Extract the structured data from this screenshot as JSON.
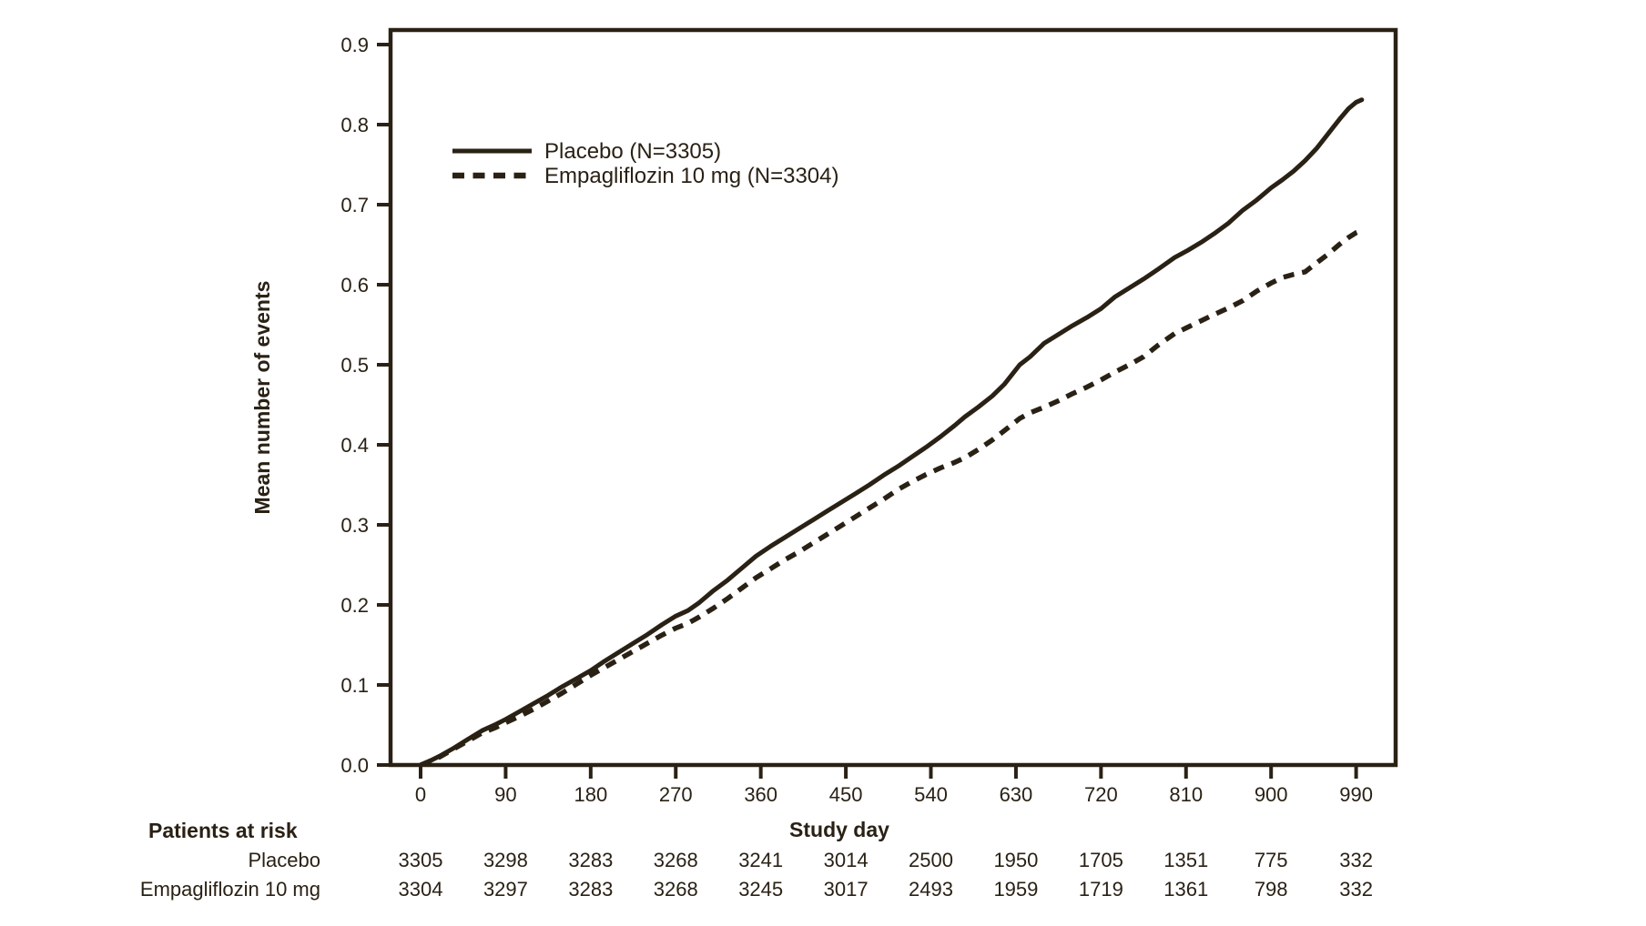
{
  "colors": {
    "ink": "#2a2115",
    "background": "#ffffff"
  },
  "chart_data": {
    "type": "line",
    "title": "",
    "xlabel": "Study day",
    "ylabel": "Mean number of events",
    "xlim": [
      0,
      990
    ],
    "ylim": [
      0.0,
      0.9
    ],
    "x_ticks": [
      0,
      90,
      180,
      270,
      360,
      450,
      540,
      630,
      720,
      810,
      900,
      990
    ],
    "y_ticks": [
      "0.0",
      "0.1",
      "0.2",
      "0.3",
      "0.4",
      "0.5",
      "0.6",
      "0.7",
      "0.8",
      "0.9"
    ],
    "grid": "off",
    "legend_position": "upper-left-inside",
    "series": [
      {
        "name": "Placebo (N=3305)",
        "style": "solid",
        "points": [
          [
            0,
            0
          ],
          [
            8,
            0.004
          ],
          [
            20,
            0.011
          ],
          [
            35,
            0.021
          ],
          [
            50,
            0.032
          ],
          [
            65,
            0.043
          ],
          [
            80,
            0.051
          ],
          [
            90,
            0.057
          ],
          [
            105,
            0.067
          ],
          [
            120,
            0.077
          ],
          [
            135,
            0.087
          ],
          [
            150,
            0.098
          ],
          [
            165,
            0.108
          ],
          [
            180,
            0.118
          ],
          [
            195,
            0.13
          ],
          [
            210,
            0.141
          ],
          [
            225,
            0.152
          ],
          [
            240,
            0.163
          ],
          [
            255,
            0.175
          ],
          [
            270,
            0.186
          ],
          [
            283,
            0.193
          ],
          [
            295,
            0.203
          ],
          [
            310,
            0.218
          ],
          [
            325,
            0.231
          ],
          [
            340,
            0.246
          ],
          [
            355,
            0.261
          ],
          [
            370,
            0.273
          ],
          [
            385,
            0.284
          ],
          [
            400,
            0.295
          ],
          [
            415,
            0.306
          ],
          [
            430,
            0.317
          ],
          [
            445,
            0.328
          ],
          [
            460,
            0.339
          ],
          [
            475,
            0.35
          ],
          [
            490,
            0.362
          ],
          [
            505,
            0.373
          ],
          [
            520,
            0.385
          ],
          [
            535,
            0.397
          ],
          [
            550,
            0.41
          ],
          [
            565,
            0.424
          ],
          [
            576,
            0.435
          ],
          [
            590,
            0.447
          ],
          [
            605,
            0.461
          ],
          [
            618,
            0.476
          ],
          [
            634,
            0.5
          ],
          [
            645,
            0.51
          ],
          [
            660,
            0.527
          ],
          [
            675,
            0.538
          ],
          [
            690,
            0.549
          ],
          [
            705,
            0.559
          ],
          [
            720,
            0.57
          ],
          [
            735,
            0.585
          ],
          [
            750,
            0.596
          ],
          [
            765,
            0.607
          ],
          [
            780,
            0.619
          ],
          [
            798,
            0.634
          ],
          [
            812,
            0.643
          ],
          [
            826,
            0.653
          ],
          [
            840,
            0.664
          ],
          [
            855,
            0.677
          ],
          [
            870,
            0.693
          ],
          [
            885,
            0.706
          ],
          [
            900,
            0.721
          ],
          [
            912,
            0.731
          ],
          [
            924,
            0.742
          ],
          [
            936,
            0.755
          ],
          [
            948,
            0.77
          ],
          [
            958,
            0.785
          ],
          [
            966,
            0.797
          ],
          [
            974,
            0.809
          ],
          [
            982,
            0.82
          ],
          [
            990,
            0.828
          ],
          [
            996,
            0.831
          ]
        ]
      },
      {
        "name": "Empagliflozin 10 mg (N=3304)",
        "style": "dashed",
        "points": [
          [
            0,
            0
          ],
          [
            8,
            0.004
          ],
          [
            20,
            0.01
          ],
          [
            35,
            0.02
          ],
          [
            50,
            0.03
          ],
          [
            65,
            0.04
          ],
          [
            80,
            0.047
          ],
          [
            90,
            0.053
          ],
          [
            105,
            0.061
          ],
          [
            120,
            0.07
          ],
          [
            135,
            0.08
          ],
          [
            150,
            0.09
          ],
          [
            165,
            0.101
          ],
          [
            180,
            0.112
          ],
          [
            195,
            0.122
          ],
          [
            210,
            0.132
          ],
          [
            225,
            0.142
          ],
          [
            240,
            0.152
          ],
          [
            255,
            0.162
          ],
          [
            270,
            0.171
          ],
          [
            283,
            0.177
          ],
          [
            295,
            0.185
          ],
          [
            310,
            0.196
          ],
          [
            325,
            0.208
          ],
          [
            340,
            0.221
          ],
          [
            355,
            0.234
          ],
          [
            370,
            0.245
          ],
          [
            385,
            0.256
          ],
          [
            400,
            0.266
          ],
          [
            415,
            0.277
          ],
          [
            430,
            0.288
          ],
          [
            445,
            0.299
          ],
          [
            460,
            0.31
          ],
          [
            475,
            0.321
          ],
          [
            490,
            0.332
          ],
          [
            505,
            0.344
          ],
          [
            520,
            0.354
          ],
          [
            535,
            0.363
          ],
          [
            550,
            0.371
          ],
          [
            565,
            0.378
          ],
          [
            576,
            0.384
          ],
          [
            590,
            0.394
          ],
          [
            605,
            0.406
          ],
          [
            618,
            0.418
          ],
          [
            634,
            0.433
          ],
          [
            645,
            0.44
          ],
          [
            660,
            0.447
          ],
          [
            675,
            0.455
          ],
          [
            690,
            0.464
          ],
          [
            705,
            0.472
          ],
          [
            720,
            0.481
          ],
          [
            735,
            0.491
          ],
          [
            750,
            0.5
          ],
          [
            765,
            0.51
          ],
          [
            780,
            0.524
          ],
          [
            798,
            0.539
          ],
          [
            812,
            0.547
          ],
          [
            826,
            0.555
          ],
          [
            840,
            0.563
          ],
          [
            855,
            0.571
          ],
          [
            870,
            0.58
          ],
          [
            885,
            0.592
          ],
          [
            900,
            0.602
          ],
          [
            912,
            0.609
          ],
          [
            924,
            0.613
          ],
          [
            936,
            0.616
          ],
          [
            948,
            0.627
          ],
          [
            960,
            0.638
          ],
          [
            972,
            0.65
          ],
          [
            982,
            0.659
          ],
          [
            990,
            0.665
          ],
          [
            996,
            0.668
          ]
        ]
      }
    ],
    "patients_at_risk": {
      "label": "Patients at risk",
      "days": [
        0,
        90,
        180,
        270,
        360,
        450,
        540,
        630,
        720,
        810,
        900,
        990
      ],
      "rows": [
        {
          "label": "Placebo",
          "counts": [
            "3305",
            "3298",
            "3283",
            "3268",
            "3241",
            "3014",
            "2500",
            "1950",
            "1705",
            "1351",
            "775",
            "332"
          ]
        },
        {
          "label": "Empagliflozin 10 mg",
          "counts": [
            "3304",
            "3297",
            "3283",
            "3268",
            "3245",
            "3017",
            "2493",
            "1959",
            "1719",
            "1361",
            "798",
            "332"
          ]
        }
      ]
    }
  }
}
